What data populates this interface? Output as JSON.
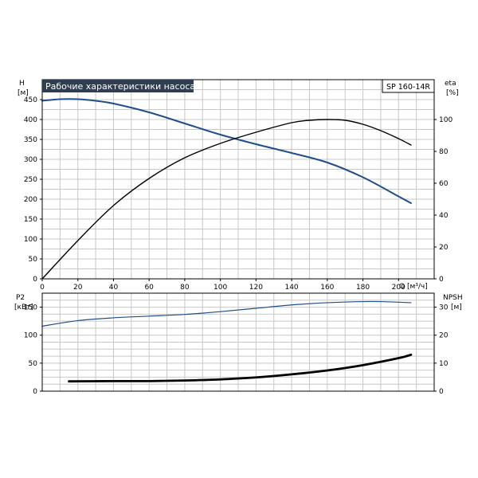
{
  "chart_data": [
    {
      "type": "line",
      "title": "Рабочие характеристики насоса",
      "model_label": "SP 160-14R",
      "xlabel": "Q [м³/ч]",
      "y_left_label": [
        "H",
        "[м]"
      ],
      "y_right_label": [
        "eta",
        "[%]"
      ],
      "xlim": [
        0,
        220
      ],
      "x_ticks": [
        0,
        20,
        40,
        60,
        80,
        100,
        120,
        140,
        160,
        180,
        200
      ],
      "y_left_lim": [
        0,
        500
      ],
      "y_left_ticks": [
        0,
        50,
        100,
        150,
        200,
        250,
        300,
        350,
        400,
        450
      ],
      "y_right_lim": [
        0,
        125
      ],
      "y_right_ticks": [
        0,
        20,
        40,
        60,
        80,
        100
      ],
      "grid": true,
      "series": [
        {
          "axis": "left",
          "color": "#1f4e8c",
          "x": [
            0,
            10,
            20,
            30,
            40,
            60,
            80,
            100,
            120,
            140,
            160,
            180,
            200,
            207
          ],
          "values": [
            447,
            451,
            451,
            447,
            440,
            418,
            390,
            362,
            338,
            316,
            292,
            255,
            207,
            190
          ]
        },
        {
          "axis": "right",
          "color": "#000000",
          "x": [
            0,
            20,
            40,
            60,
            80,
            100,
            120,
            140,
            150,
            160,
            170,
            180,
            190,
            200,
            207
          ],
          "values": [
            0,
            24,
            46,
            63,
            76,
            85,
            92,
            98,
            99.5,
            100,
            99.5,
            97,
            93,
            88,
            84
          ]
        }
      ]
    },
    {
      "type": "line",
      "y_left_label": [
        "P2",
        "[кВт]"
      ],
      "y_right_label": [
        "NPSH",
        "[м]"
      ],
      "xlim": [
        0,
        220
      ],
      "x_ticks": [
        0,
        20,
        40,
        60,
        80,
        100,
        120,
        140,
        160,
        180,
        200
      ],
      "y_left_lim": [
        0,
        175
      ],
      "y_left_ticks": [
        0,
        50,
        100,
        150
      ],
      "y_right_lim": [
        0,
        35
      ],
      "y_right_ticks": [
        0,
        10,
        20,
        30
      ],
      "grid": true,
      "series": [
        {
          "axis": "left",
          "color": "#1f4e8c",
          "x": [
            0,
            20,
            40,
            60,
            80,
            100,
            120,
            140,
            160,
            180,
            190,
            207
          ],
          "values": [
            116,
            126,
            131,
            134,
            137,
            142,
            148,
            154,
            158,
            160,
            160,
            158
          ]
        },
        {
          "axis": "right",
          "color": "#000000",
          "x": [
            15,
            40,
            60,
            80,
            100,
            120,
            140,
            160,
            180,
            200,
            207
          ],
          "values": [
            3.5,
            3.6,
            3.6,
            3.8,
            4.2,
            4.9,
            6.0,
            7.4,
            9.3,
            11.8,
            13
          ]
        }
      ]
    }
  ]
}
